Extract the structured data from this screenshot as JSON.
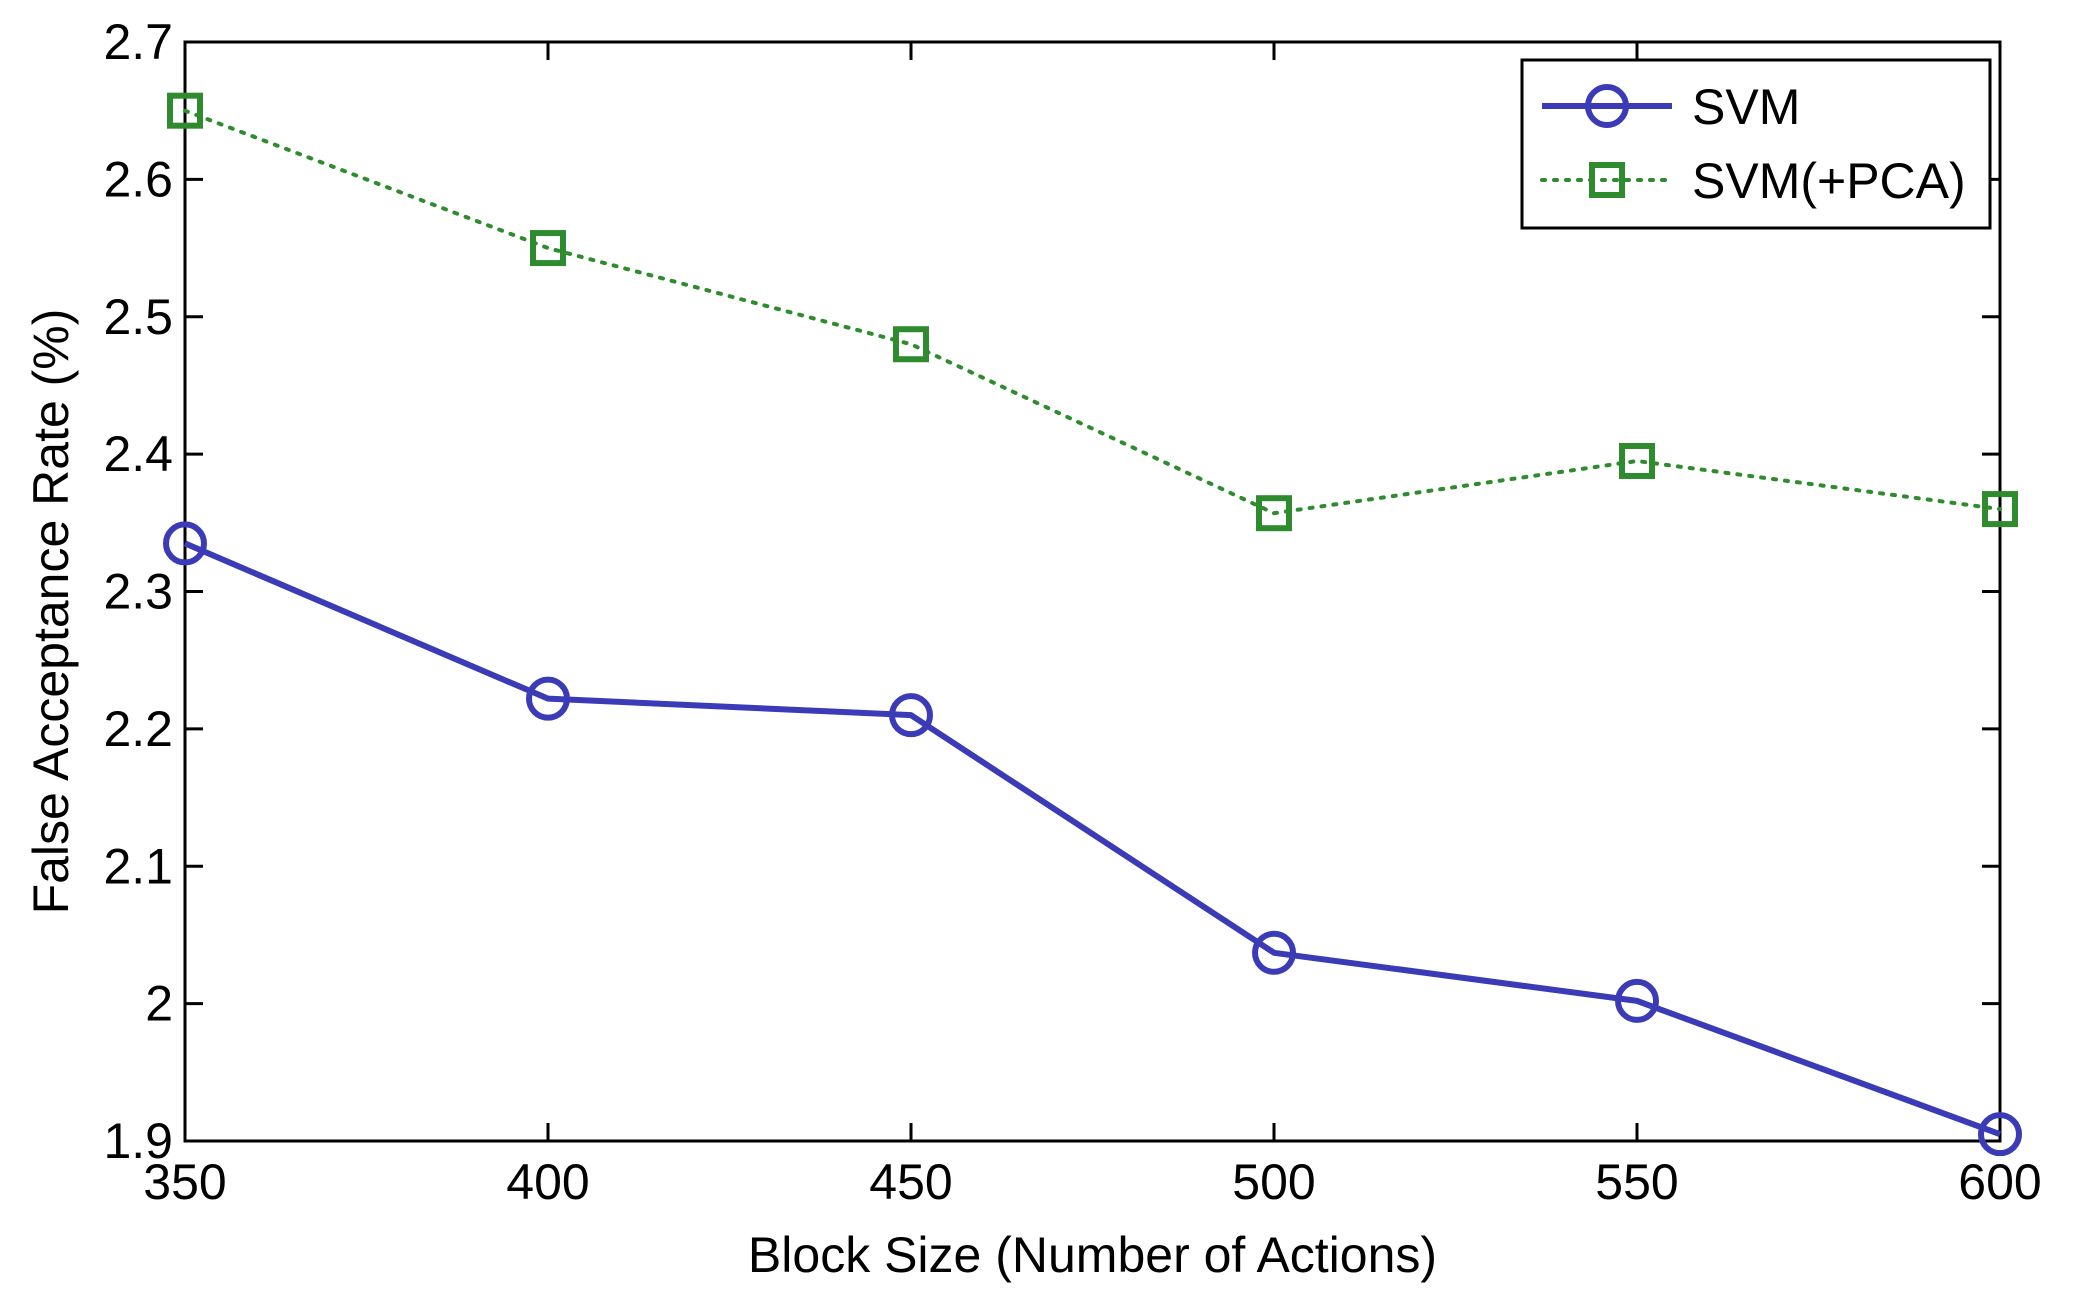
{
  "chart_data": {
    "type": "line",
    "title": "",
    "xlabel": "Block Size (Number of Actions)",
    "ylabel": "False Acceptance Rate (%)",
    "x": [
      350,
      400,
      450,
      500,
      550,
      600
    ],
    "xlim": [
      350,
      600
    ],
    "ylim": [
      1.9,
      2.7
    ],
    "xticks": [
      350,
      400,
      450,
      500,
      550,
      600
    ],
    "xtick_labels": [
      "350",
      "400",
      "450",
      "500",
      "550",
      "600"
    ],
    "yticks": [
      1.9,
      2.0,
      2.1,
      2.2,
      2.3,
      2.4,
      2.5,
      2.6,
      2.7
    ],
    "ytick_labels": [
      "1.9",
      "2",
      "2.1",
      "2.2",
      "2.3",
      "2.4",
      "2.5",
      "2.6",
      "2.7"
    ],
    "grid": false,
    "legend_position": "top-right",
    "series": [
      {
        "name": "SVM",
        "values": [
          2.335,
          2.222,
          2.21,
          2.037,
          2.002,
          1.905
        ],
        "color": "#3b3bb8",
        "line_style": "solid",
        "marker": "circle"
      },
      {
        "name": "SVM(+PCA)",
        "values": [
          2.65,
          2.55,
          2.48,
          2.357,
          2.395,
          2.36
        ],
        "color": "#2e8b2e",
        "line_style": "dotted",
        "marker": "square"
      }
    ]
  }
}
